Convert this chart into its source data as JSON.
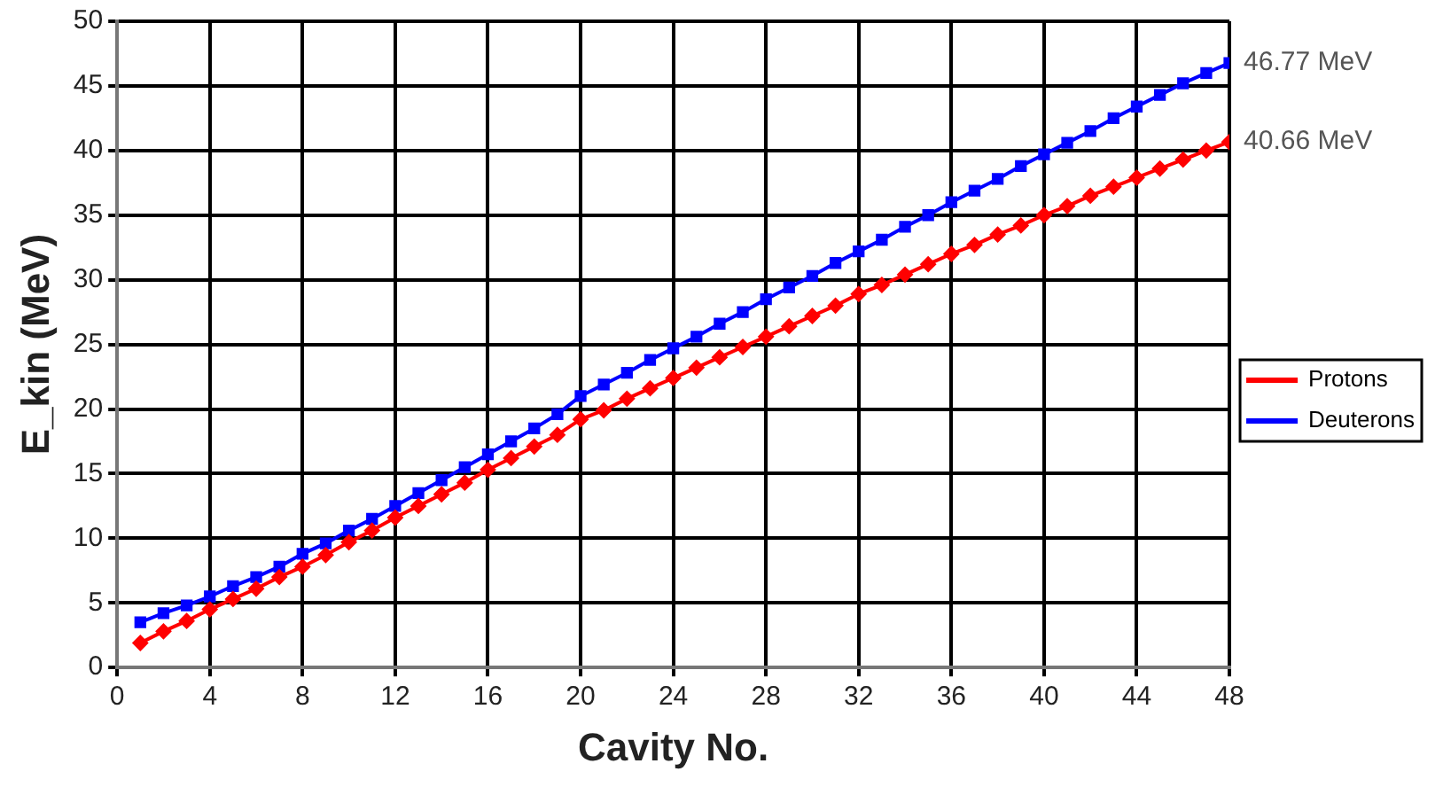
{
  "chart_data": {
    "type": "line",
    "xlabel": "Cavity No.",
    "ylabel": "E_kin (MeV)",
    "x": [
      1,
      2,
      3,
      4,
      5,
      6,
      7,
      8,
      9,
      10,
      11,
      12,
      13,
      14,
      15,
      16,
      17,
      18,
      19,
      20,
      21,
      22,
      23,
      24,
      25,
      26,
      27,
      28,
      29,
      30,
      31,
      32,
      33,
      34,
      35,
      36,
      37,
      38,
      39,
      40,
      41,
      42,
      43,
      44,
      45,
      46,
      47,
      48
    ],
    "series": [
      {
        "name": "Protons",
        "color": "#ff0000",
        "marker": "diamond",
        "values": [
          1.9,
          2.8,
          3.6,
          4.5,
          5.3,
          6.1,
          7.0,
          7.8,
          8.7,
          9.7,
          10.6,
          11.6,
          12.5,
          13.4,
          14.3,
          15.3,
          16.2,
          17.1,
          18.0,
          19.2,
          19.9,
          20.8,
          21.6,
          22.4,
          23.2,
          24.0,
          24.8,
          25.6,
          26.4,
          27.2,
          28.0,
          28.9,
          29.6,
          30.4,
          31.2,
          32.0,
          32.7,
          33.5,
          34.2,
          35.0,
          35.7,
          36.5,
          37.2,
          37.9,
          38.6,
          39.3,
          40.0,
          40.66
        ]
      },
      {
        "name": "Deuterons",
        "color": "#0000ff",
        "marker": "square",
        "values": [
          3.5,
          4.2,
          4.8,
          5.5,
          6.3,
          7.0,
          7.8,
          8.8,
          9.6,
          10.6,
          11.5,
          12.5,
          13.5,
          14.5,
          15.5,
          16.5,
          17.5,
          18.5,
          19.6,
          21.0,
          21.9,
          22.8,
          23.8,
          24.7,
          25.6,
          26.6,
          27.5,
          28.5,
          29.4,
          30.3,
          31.3,
          32.2,
          33.1,
          34.1,
          35.0,
          36.0,
          36.9,
          37.8,
          38.8,
          39.7,
          40.6,
          41.5,
          42.5,
          43.4,
          44.3,
          45.2,
          46.0,
          46.77
        ]
      }
    ],
    "xlim": [
      0,
      48
    ],
    "xticks": [
      0,
      4,
      8,
      12,
      16,
      20,
      24,
      28,
      32,
      36,
      40,
      44,
      48
    ],
    "ylim": [
      0,
      50
    ],
    "yticks": [
      0,
      5,
      10,
      15,
      20,
      25,
      30,
      35,
      40,
      45,
      50
    ],
    "grid": true,
    "legend": "right",
    "line_style": "solid",
    "annotations": [
      {
        "text": "46.77 MeV",
        "x": 48,
        "y": 46.77
      },
      {
        "text": "40.66 MeV",
        "x": 48,
        "y": 40.66
      }
    ]
  }
}
